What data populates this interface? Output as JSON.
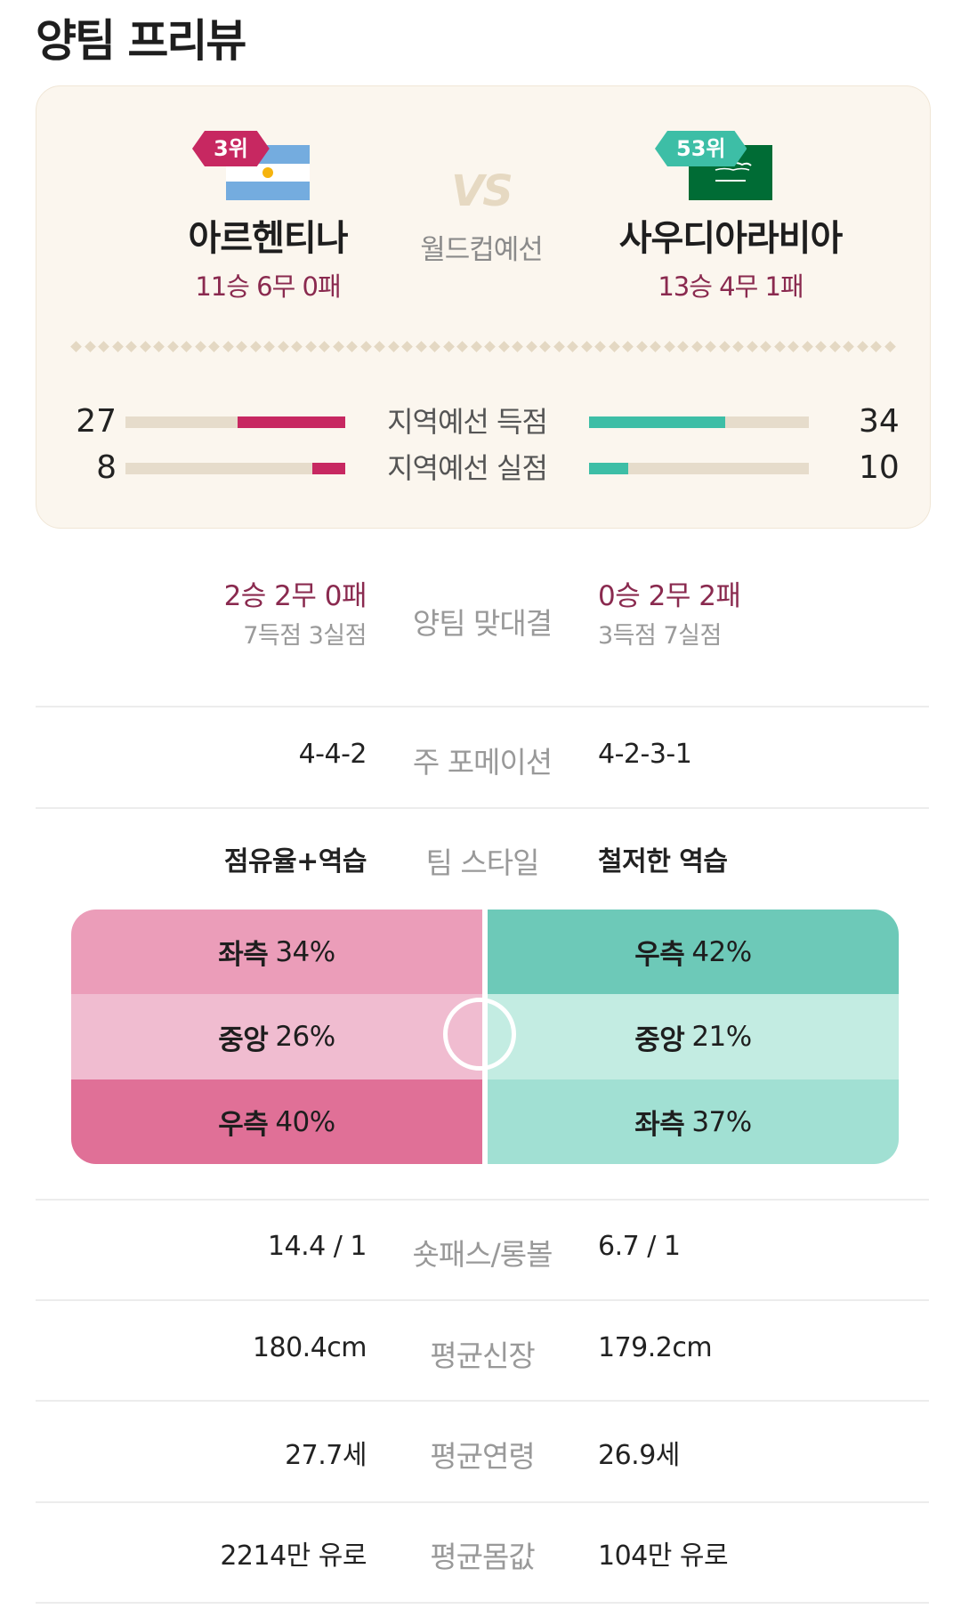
{
  "page": {
    "title": "양팀 프리뷰"
  },
  "match": {
    "vs": "VS",
    "stage": "월드컵예선",
    "left": {
      "rank": "3위",
      "name": "아르헨티나",
      "record": "11승 6무 0패",
      "rank_color": "#c72861",
      "flag": {
        "icon": "argentina-flag",
        "colors": [
          "#74acdf",
          "#ffffff",
          "#f6b40e"
        ]
      }
    },
    "right": {
      "rank": "53위",
      "name": "사우디아라비아",
      "record": "13승 4무 1패",
      "rank_color": "#3dbea6",
      "flag": {
        "icon": "saudi-arabia-flag",
        "colors": [
          "#006c35",
          "#ffffff"
        ]
      }
    }
  },
  "qualifier_stats": [
    {
      "label": "지역예선 득점",
      "left": "27",
      "right": "34",
      "left_fraction": 0.49,
      "right_fraction": 0.62
    },
    {
      "label": "지역예선 실점",
      "left": "8",
      "right": "10",
      "left_fraction": 0.15,
      "right_fraction": 0.18
    }
  ],
  "head_to_head": {
    "label": "양팀 맞대결",
    "left_record": "2승 2무 0패",
    "left_goals": "7득점 3실점",
    "right_record": "0승 2무 2패",
    "right_goals": "3득점 7실점"
  },
  "formation": {
    "label": "주 포메이션",
    "left": "4-4-2",
    "right": "4-2-3-1"
  },
  "style": {
    "label": "팀 스타일",
    "left": "점유율+역습",
    "right": "철저한 역습"
  },
  "attack_share": {
    "left": [
      {
        "side": "좌측",
        "value": "34%",
        "color": "#eb9db9"
      },
      {
        "side": "중앙",
        "value": "26%",
        "color": "#f0bcd0"
      },
      {
        "side": "우측",
        "value": "40%",
        "color": "#e07097"
      }
    ],
    "right": [
      {
        "side": "우측",
        "value": "42%",
        "color": "#6dc9b8"
      },
      {
        "side": "중앙",
        "value": "21%",
        "color": "#c3ece2"
      },
      {
        "side": "좌측",
        "value": "37%",
        "color": "#a1e0d3"
      }
    ]
  },
  "stats": [
    {
      "label": "숏패스/롱볼",
      "left": "14.4 / 1",
      "right": "6.7 / 1"
    },
    {
      "label": "평균신장",
      "left": "180.4cm",
      "right": "179.2cm"
    },
    {
      "label": "평균연령",
      "left": "27.7세",
      "right": "26.9세"
    },
    {
      "label": "평균몸값",
      "left": "2214만 유로",
      "right": "104만 유로"
    }
  ]
}
